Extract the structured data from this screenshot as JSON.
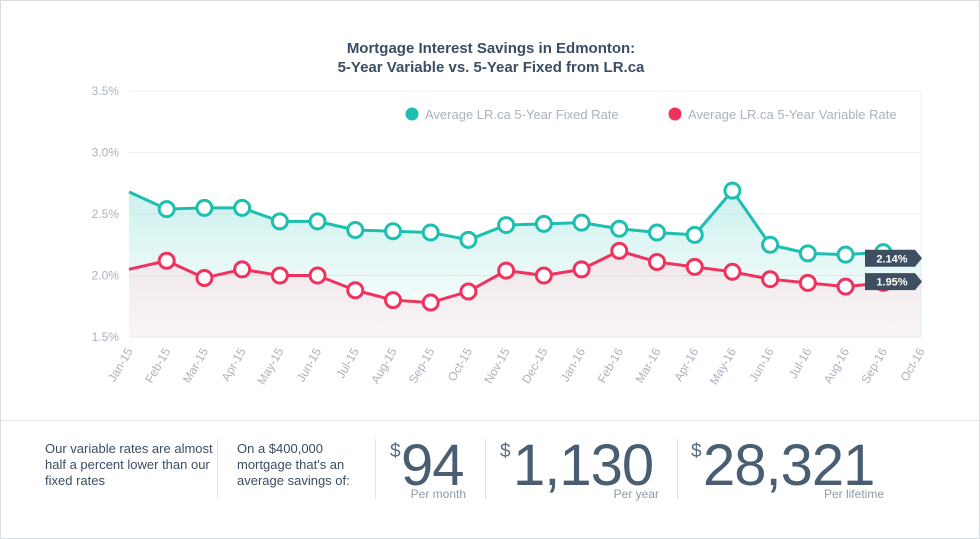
{
  "title_line1": "Mortgage Interest Savings in Edmonton:",
  "title_line2": "5-Year Variable vs. 5-Year Fixed from LR.ca",
  "colors": {
    "fixed": "#1dbfb1",
    "variable": "#f0325f",
    "axis_text": "#aab2bd",
    "badge": "#3f4f62"
  },
  "chart_data": {
    "type": "line",
    "title": "Mortgage Interest Savings in Edmonton: 5-Year Variable vs. 5-Year Fixed from LR.ca",
    "x": [
      "Jan-15",
      "Feb-15",
      "Mar-15",
      "Apr-15",
      "May-15",
      "Jun-15",
      "Jul-15",
      "Aug-15",
      "Sep-15",
      "Oct-15",
      "Nov-15",
      "Dec-15",
      "Jan-16",
      "Feb-16",
      "Mar-16",
      "Apr-16",
      "May-16",
      "Jun-16",
      "Jul-16",
      "Aug-16",
      "Sep-16",
      "Oct-16"
    ],
    "yticks": [
      "1.5%",
      "2.0%",
      "2.5%",
      "3.0%",
      "3.5%"
    ],
    "ylim": [
      1.5,
      3.5
    ],
    "grid": true,
    "legend_position": "top-right",
    "series": [
      {
        "name": "Average LR.ca 5-Year Fixed Rate",
        "color": "#1dbfb1",
        "values": [
          2.68,
          2.54,
          2.55,
          2.55,
          2.44,
          2.44,
          2.37,
          2.36,
          2.35,
          2.29,
          2.41,
          2.42,
          2.43,
          2.38,
          2.35,
          2.33,
          2.69,
          2.25,
          2.18,
          2.17,
          2.19,
          2.14
        ]
      },
      {
        "name": "Average LR.ca 5-Year Variable Rate",
        "color": "#f0325f",
        "values": [
          2.05,
          2.12,
          1.98,
          2.05,
          2.0,
          2.0,
          1.88,
          1.8,
          1.78,
          1.87,
          2.04,
          2.0,
          2.05,
          2.2,
          2.11,
          2.07,
          2.03,
          1.97,
          1.94,
          1.91,
          1.94,
          1.95
        ]
      }
    ],
    "end_labels": [
      "2.14%",
      "1.95%"
    ]
  },
  "footer": {
    "text1": "Our variable rates are almost half a percent lower than our fixed rates",
    "text2": "On a $400,000 mortgage that's an average savings of:",
    "dollar": "$",
    "month_value": "94",
    "month_caption": "Per month",
    "year_value": "1,130",
    "year_caption": "Per year",
    "lifetime_value": "28,321",
    "lifetime_caption": "Per lifetime"
  }
}
